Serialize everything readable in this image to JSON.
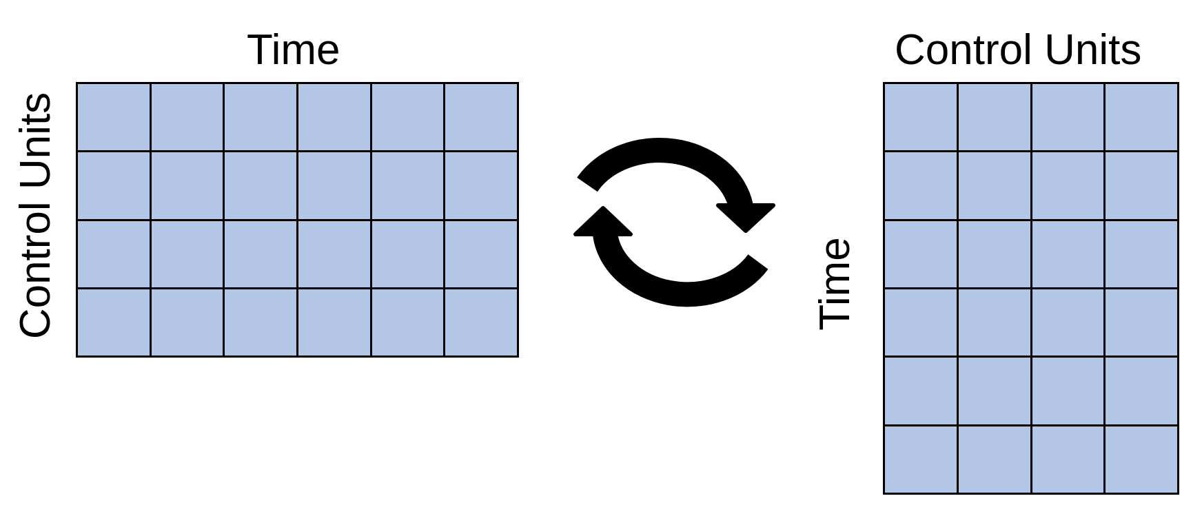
{
  "left_matrix": {
    "top_label": "Time",
    "side_label": "Control Units",
    "rows": 4,
    "cols": 6
  },
  "right_matrix": {
    "top_label": "Control Units",
    "side_label": "Time",
    "rows": 6,
    "cols": 4
  },
  "cell_color": "#b4c7e7",
  "border_color": "#000000",
  "center_icon": "cycle-arrows-icon"
}
